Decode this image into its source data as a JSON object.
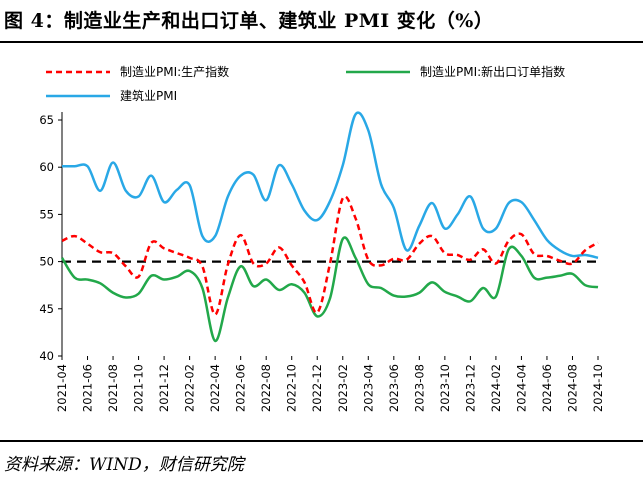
{
  "figure": {
    "title": "图 4：制造业生产和出口订单、建筑业 PMI 变化（%）",
    "source": "资料来源：WIND，财信研究院"
  },
  "colors": {
    "production": "#ff0000",
    "export_orders": "#22a84a",
    "construction": "#29a8e6",
    "reference": "#000000"
  },
  "chart_data": {
    "type": "line",
    "title": "图 4：制造业生产和出口订单、建筑业 PMI 变化（%）",
    "xlabel": "",
    "ylabel": "",
    "ylim": [
      40,
      65
    ],
    "yticks": [
      40,
      45,
      50,
      55,
      60,
      65
    ],
    "grid": false,
    "legend_position": "top",
    "reference_line": {
      "y": 50,
      "style": "dashed",
      "color": "#000000"
    },
    "x": [
      "2021-04",
      "2021-05",
      "2021-06",
      "2021-07",
      "2021-08",
      "2021-09",
      "2021-10",
      "2021-11",
      "2021-12",
      "2022-01",
      "2022-02",
      "2022-03",
      "2022-04",
      "2022-05",
      "2022-06",
      "2022-07",
      "2022-08",
      "2022-09",
      "2022-10",
      "2022-11",
      "2022-12",
      "2023-01",
      "2023-02",
      "2023-03",
      "2023-04",
      "2023-05",
      "2023-06",
      "2023-07",
      "2023-08",
      "2023-09",
      "2023-10",
      "2023-11",
      "2023-12",
      "2024-01",
      "2024-02",
      "2024-03",
      "2024-04",
      "2024-05",
      "2024-06",
      "2024-07",
      "2024-08",
      "2024-09",
      "2024-10"
    ],
    "x_tick_labels": [
      "2021-04",
      "2021-06",
      "2021-08",
      "2021-10",
      "2021-12",
      "2022-02",
      "2022-04",
      "2022-06",
      "2022-08",
      "2022-10",
      "2022-12",
      "2023-02",
      "2023-04",
      "2023-06",
      "2023-08",
      "2023-10",
      "2023-12",
      "2024-02",
      "2024-04",
      "2024-06",
      "2024-08",
      "2024-10"
    ],
    "series": [
      {
        "name": "制造业PMI:生产指数",
        "style": "dashed",
        "color": "#ff0000",
        "values": [
          52.2,
          52.7,
          51.9,
          51.0,
          50.9,
          49.5,
          48.4,
          52.0,
          51.4,
          50.9,
          50.4,
          49.5,
          44.4,
          49.7,
          52.8,
          49.8,
          49.8,
          51.5,
          49.6,
          47.8,
          44.6,
          49.8,
          56.7,
          54.6,
          50.2,
          49.6,
          50.3,
          50.2,
          51.9,
          52.7,
          50.9,
          50.7,
          50.2,
          51.3,
          49.8,
          52.2,
          52.9,
          50.8,
          50.6,
          50.1,
          49.8,
          51.2,
          52.0
        ]
      },
      {
        "name": "制造业PMI:新出口订单指数",
        "style": "solid",
        "color": "#22a84a",
        "values": [
          50.4,
          48.3,
          48.1,
          47.7,
          46.7,
          46.2,
          46.6,
          48.5,
          48.1,
          48.4,
          49.0,
          47.2,
          41.6,
          46.2,
          49.5,
          47.4,
          48.1,
          47.0,
          47.6,
          46.7,
          44.2,
          46.1,
          52.4,
          50.4,
          47.6,
          47.2,
          46.4,
          46.3,
          46.7,
          47.8,
          46.8,
          46.3,
          45.8,
          47.2,
          46.3,
          51.3,
          50.6,
          48.3,
          48.3,
          48.5,
          48.7,
          47.5,
          47.3
        ]
      },
      {
        "name": "建筑业PMI",
        "style": "solid",
        "color": "#29a8e6",
        "values": [
          60.1,
          60.1,
          60.1,
          57.5,
          60.5,
          57.5,
          56.9,
          59.1,
          56.3,
          57.6,
          58.1,
          52.7,
          52.7,
          56.9,
          59.1,
          59.2,
          56.5,
          60.2,
          58.2,
          55.4,
          54.4,
          56.4,
          60.2,
          65.6,
          63.9,
          58.2,
          55.7,
          51.2,
          53.8,
          56.2,
          53.5,
          55.0,
          56.9,
          53.5,
          53.5,
          56.2,
          56.3,
          54.4,
          52.3,
          51.2,
          50.6,
          50.7,
          50.4
        ]
      }
    ]
  }
}
